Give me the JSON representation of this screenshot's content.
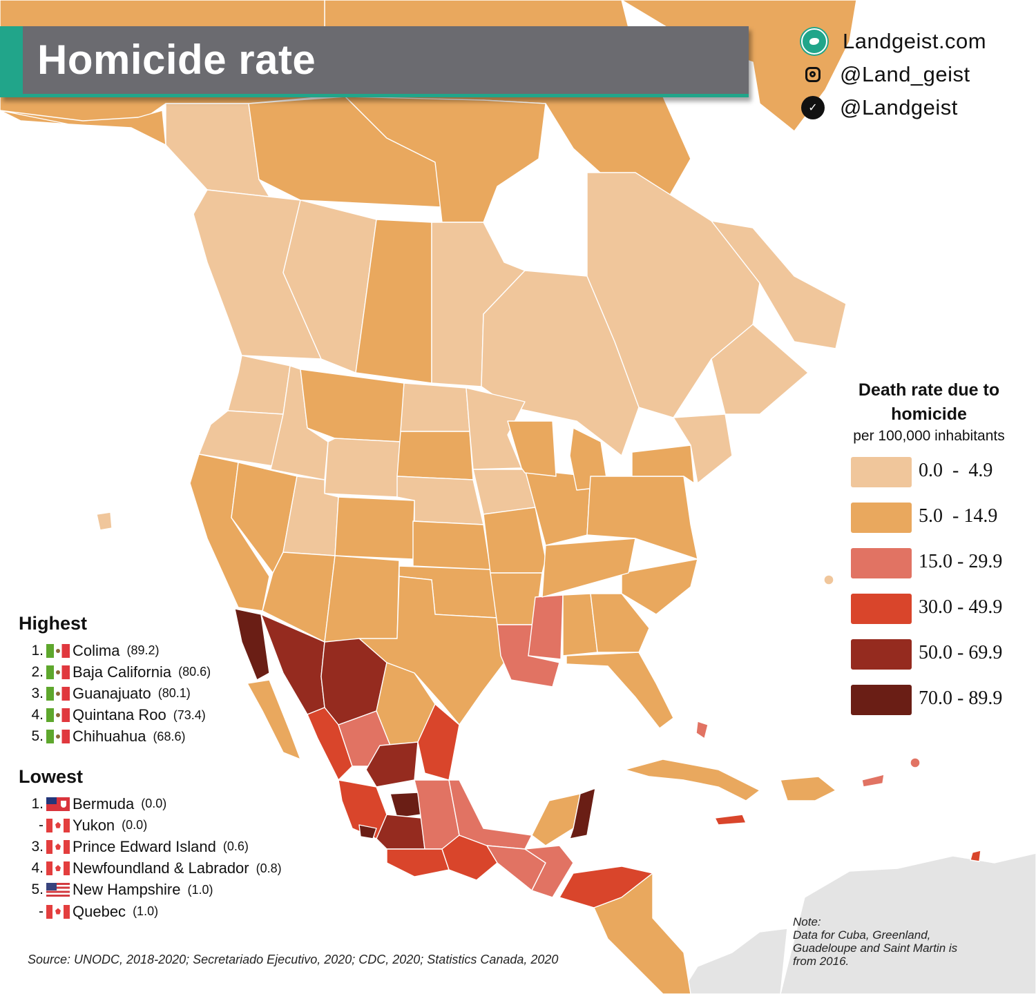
{
  "title": "Homicide rate",
  "social": {
    "website": "Landgeist.com",
    "instagram": "@Land_geist",
    "twitter": "@Landgeist"
  },
  "legend": {
    "title_line1": "Death rate due to",
    "title_line2": "homicide",
    "subtitle": "per 100,000 inhabitants",
    "bins": [
      {
        "label": "0.0  -  4.9",
        "color": "#f0c69b"
      },
      {
        "label": "5.0  - 14.9",
        "color": "#e9a85e"
      },
      {
        "label": "15.0 - 29.9",
        "color": "#e17363"
      },
      {
        "label": "30.0 - 49.9",
        "color": "#d9452b"
      },
      {
        "label": "50.0 - 69.9",
        "color": "#952b1f"
      },
      {
        "label": "70.0 - 89.9",
        "color": "#6a1e15"
      }
    ]
  },
  "highest": {
    "title": "Highest",
    "items": [
      {
        "rank": "1.",
        "flag": "mx",
        "name": "Colima",
        "value": "(89.2)"
      },
      {
        "rank": "2.",
        "flag": "mx",
        "name": "Baja California",
        "value": "(80.6)"
      },
      {
        "rank": "3.",
        "flag": "mx",
        "name": "Guanajuato",
        "value": "(80.1)"
      },
      {
        "rank": "4.",
        "flag": "mx",
        "name": "Quintana Roo",
        "value": "(73.4)"
      },
      {
        "rank": "5.",
        "flag": "mx",
        "name": "Chihuahua",
        "value": "(68.6)"
      }
    ]
  },
  "lowest": {
    "title": "Lowest",
    "items": [
      {
        "rank": "1.",
        "flag": "bm",
        "name": "Bermuda",
        "value": "(0.0)"
      },
      {
        "rank": "-",
        "flag": "ca",
        "name": "Yukon",
        "value": "(0.0)"
      },
      {
        "rank": "3.",
        "flag": "ca",
        "name": "Prince Edward Island",
        "value": "(0.6)"
      },
      {
        "rank": "4.",
        "flag": "ca",
        "name": "Newfoundland & Labrador",
        "value": "(0.8)"
      },
      {
        "rank": "5.",
        "flag": "us",
        "name": "New Hampshire",
        "value": "(1.0)"
      },
      {
        "rank": "-",
        "flag": "ca",
        "name": "Quebec",
        "value": "(1.0)"
      }
    ]
  },
  "source": "Source: UNODC, 2018-2020; Secretariado Ejecutivo, 2020; CDC, 2020; Statistics Canada, 2020",
  "note": {
    "heading": "Note:",
    "lines": [
      "Data for Cuba, Greenland,",
      "Guadeloupe and Saint Martin is",
      "from 2016."
    ]
  },
  "colors": {
    "other_land": "#e4e4e4",
    "water": "#ffffff",
    "accent": "#21a58a",
    "banner": "#6b6b70"
  }
}
